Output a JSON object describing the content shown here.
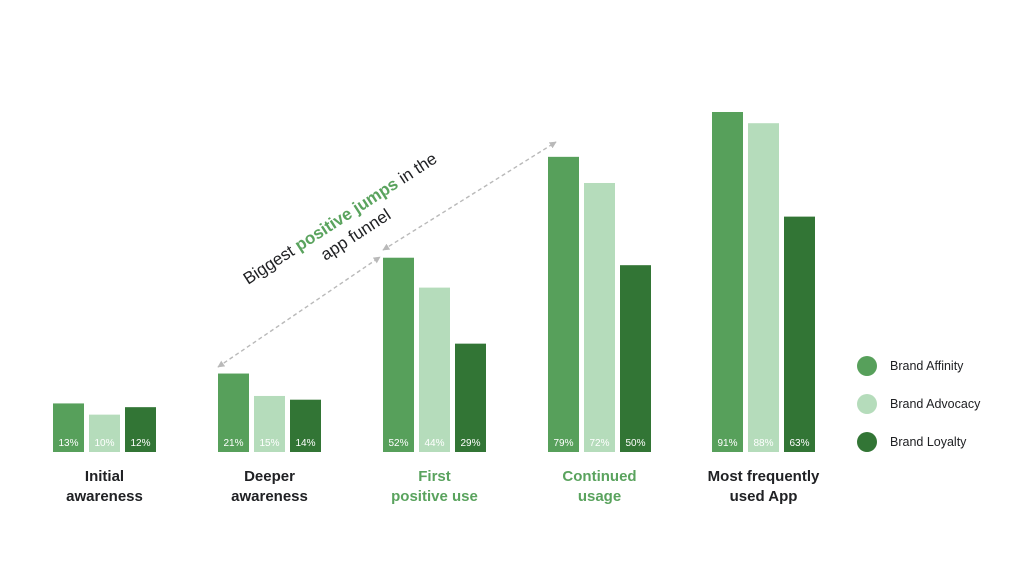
{
  "chart_data": {
    "type": "bar",
    "categories": [
      [
        "Initial",
        "awareness"
      ],
      [
        "Deeper",
        "awareness"
      ],
      [
        "First",
        "positive use"
      ],
      [
        "Continued",
        "usage"
      ],
      [
        "Most frequently",
        "used App"
      ]
    ],
    "highlighted_categories": [
      2,
      3
    ],
    "series": [
      {
        "name": "Brand Affinity",
        "color": "#57a05b",
        "values": [
          13,
          21,
          52,
          79,
          91
        ]
      },
      {
        "name": "Brand Advocacy",
        "color": "#b5dcbb",
        "values": [
          10,
          15,
          44,
          72,
          88
        ]
      },
      {
        "name": "Brand Loyalty",
        "color": "#327535",
        "values": [
          12,
          14,
          29,
          50,
          63
        ]
      }
    ],
    "value_suffix": "%",
    "ylim": [
      0,
      100
    ],
    "legend_position": "right",
    "grid": false,
    "annotation": {
      "line1": [
        "Biggest ",
        "positive jumps",
        " in the"
      ],
      "line2": "app funnel",
      "highlight_color": "#5aa35e"
    }
  }
}
